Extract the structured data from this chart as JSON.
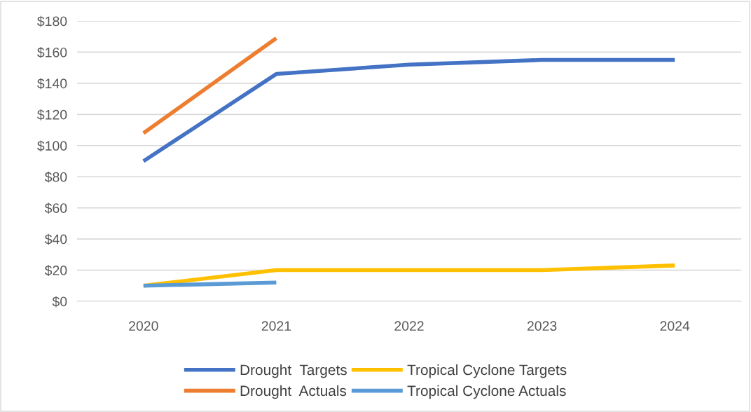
{
  "chart_data": {
    "type": "line",
    "categories": [
      "2020",
      "2021",
      "2022",
      "2023",
      "2024"
    ],
    "series": [
      {
        "name": "Drought  Targets",
        "color": "#4472c4",
        "values": [
          90,
          146,
          152,
          155,
          155
        ]
      },
      {
        "name": "Drought  Actuals",
        "color": "#ed7d31",
        "values": [
          108,
          169,
          null,
          null,
          null
        ]
      },
      {
        "name": "Tropical Cyclone Targets",
        "color": "#ffc000",
        "values": [
          10,
          20,
          20,
          20,
          23
        ]
      },
      {
        "name": "Tropical Cyclone Actuals",
        "color": "#5b9bd5",
        "values": [
          10,
          12,
          null,
          null,
          null
        ]
      }
    ],
    "ylim": [
      0,
      180
    ],
    "yticks": [
      {
        "value": 0,
        "label": "$0"
      },
      {
        "value": 20,
        "label": "$20"
      },
      {
        "value": 40,
        "label": "$40"
      },
      {
        "value": 60,
        "label": "$60"
      },
      {
        "value": 80,
        "label": "$80"
      },
      {
        "value": 100,
        "label": "$100"
      },
      {
        "value": 120,
        "label": "$120"
      },
      {
        "value": 140,
        "label": "$140"
      },
      {
        "value": 160,
        "label": "$160"
      },
      {
        "value": 180,
        "label": "$180"
      }
    ],
    "grid": "y",
    "legend": "bottom",
    "marker": "none",
    "line_style": "solid"
  }
}
